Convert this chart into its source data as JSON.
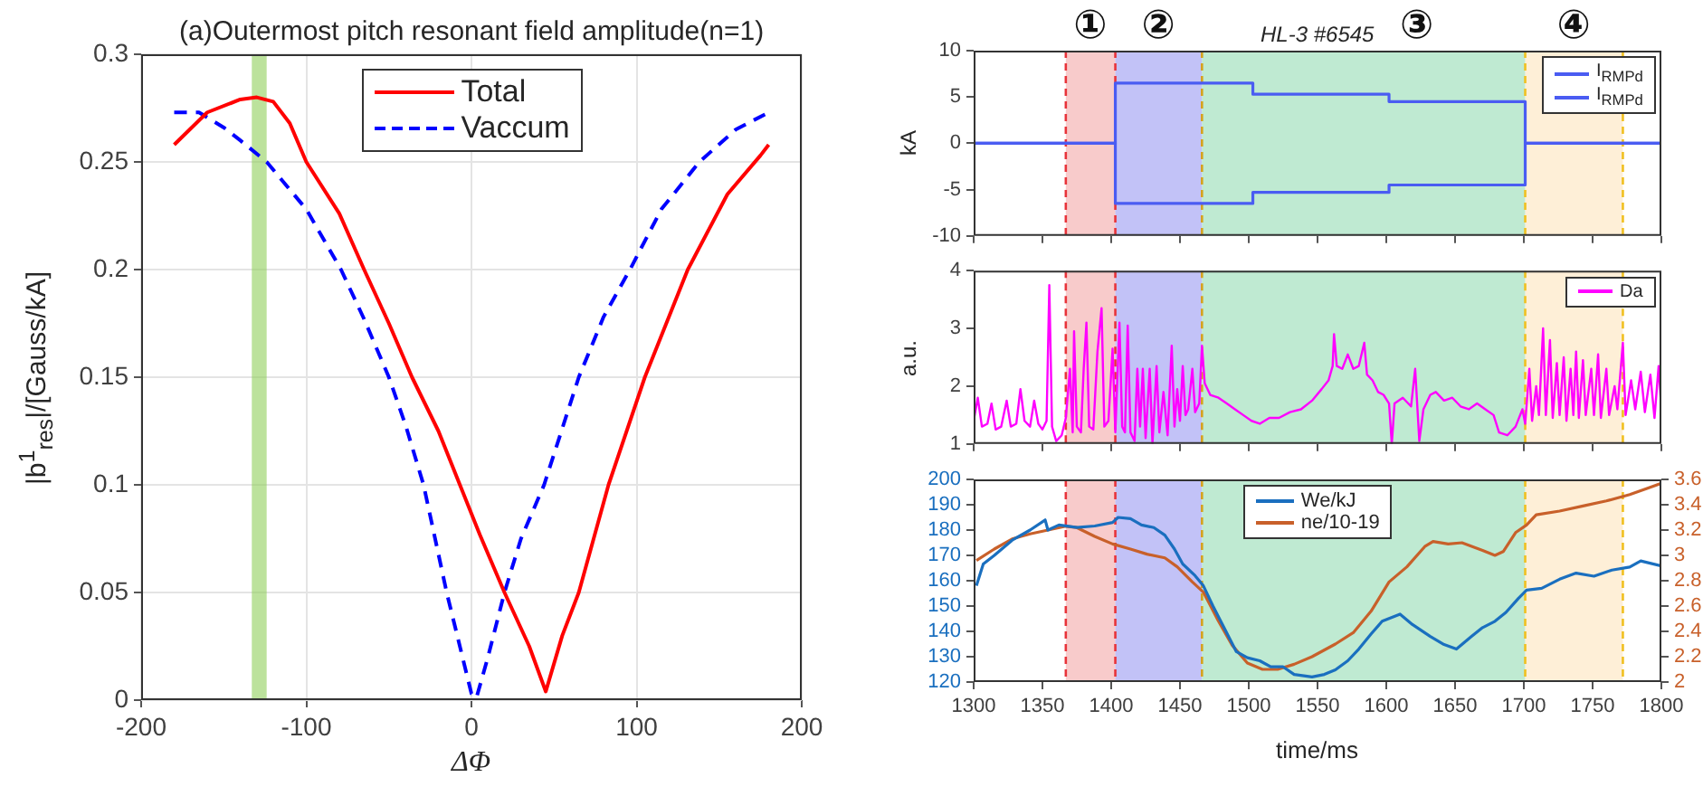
{
  "chart_data": [
    {
      "type": "line",
      "title": "(a)Outermost pitch resonant field amplitude(n=1)",
      "xlabel": "ΔΦ",
      "ylabel": "|b$^{1}$$_{res}$|/[Gauss/kA]",
      "xlim": [
        -200,
        200
      ],
      "xticks": [
        -200,
        -100,
        0,
        100,
        200
      ],
      "ylim": [
        0,
        0.3
      ],
      "yticks": [
        0,
        0.05,
        0.1,
        0.15,
        0.2,
        0.25,
        0.3
      ],
      "grid": true,
      "legend": "top",
      "marker": "none",
      "bands": [
        {
          "axis": "x",
          "from": -133,
          "to": -124,
          "color": "#8fcf5a"
        }
      ],
      "series": [
        {
          "name": "Total",
          "color": "#ff0000",
          "x": [
            -180,
            -160,
            -140,
            -130,
            -120,
            -110,
            -100,
            -80,
            -65,
            -50,
            -36,
            -20,
            -7,
            5,
            20,
            35,
            45,
            55,
            65,
            83,
            105,
            131,
            155,
            175,
            180
          ],
          "values": [
            0.258,
            0.273,
            0.279,
            0.28,
            0.278,
            0.268,
            0.25,
            0.226,
            0.2,
            0.175,
            0.15,
            0.125,
            0.1,
            0.077,
            0.05,
            0.025,
            0.004,
            0.03,
            0.05,
            0.1,
            0.15,
            0.2,
            0.235,
            0.253,
            0.258
          ]
        },
        {
          "name": "Vaccum",
          "color": "#0000ff",
          "line_style": "dashed",
          "x": [
            -180,
            -165,
            -150,
            -140,
            -124,
            -100,
            -79,
            -65,
            -50,
            -40,
            -29,
            -15,
            0,
            3,
            10,
            20,
            30,
            44,
            65,
            80,
            96,
            115,
            138,
            160,
            180
          ],
          "values": [
            0.273,
            0.273,
            0.266,
            0.26,
            0.25,
            0.228,
            0.2,
            0.177,
            0.15,
            0.128,
            0.1,
            0.05,
            0.003,
            0.001,
            0.02,
            0.05,
            0.075,
            0.1,
            0.15,
            0.178,
            0.2,
            0.228,
            0.25,
            0.265,
            0.273
          ]
        }
      ]
    },
    {
      "type": "line",
      "title": "HL-3 #6545",
      "ylabel": "kA",
      "xlim": [
        1300,
        1800
      ],
      "xticks": [
        1300,
        1350,
        1400,
        1450,
        1500,
        1550,
        1600,
        1650,
        1700,
        1750,
        1800
      ],
      "ylim": [
        -10,
        10
      ],
      "yticks": [
        -10,
        -5,
        0,
        5,
        10
      ],
      "tick_labels": "y",
      "legend": "top right",
      "marker": "none",
      "bands": [
        {
          "axis": "x",
          "from": 1367,
          "to": 1403,
          "color": "#f4a8a8",
          "label": "①"
        },
        {
          "axis": "x",
          "from": 1403,
          "to": 1466,
          "color": "#9a9af2",
          "label": "②"
        },
        {
          "axis": "x",
          "from": 1466,
          "to": 1701,
          "color": "#95dcb4",
          "label": "③"
        },
        {
          "axis": "x",
          "from": 1701,
          "to": 1772,
          "color": "#fde4bd",
          "label": "④"
        }
      ],
      "ref_lines": [
        {
          "axis": "x",
          "value": 1367,
          "color": "#e8333a",
          "line_style": "dashed"
        },
        {
          "axis": "x",
          "value": 1403,
          "color": "#e8333a",
          "line_style": "dashed"
        },
        {
          "axis": "x",
          "value": 1466,
          "color": "#d6a21e",
          "line_style": "dashed"
        },
        {
          "axis": "x",
          "value": 1701,
          "color": "#f0c020",
          "line_style": "dashed"
        },
        {
          "axis": "x",
          "value": 1772,
          "color": "#f0c020",
          "line_style": "dashed"
        }
      ],
      "series": [
        {
          "name": "I$_{RMPd}$",
          "color": "#4a5cf2",
          "x": [
            1300,
            1403,
            1403,
            1503,
            1503,
            1602,
            1602,
            1701,
            1701,
            1800
          ],
          "values": [
            0,
            0,
            6.5,
            6.5,
            5.3,
            5.3,
            4.5,
            4.5,
            0,
            0
          ]
        },
        {
          "name": "I$_{RMPd}$",
          "color": "#4a5cf2",
          "x": [
            1300,
            1403,
            1403,
            1503,
            1503,
            1602,
            1602,
            1701,
            1701,
            1800
          ],
          "values": [
            0,
            0,
            -6.5,
            -6.5,
            -5.3,
            -5.3,
            -4.5,
            -4.5,
            0,
            0
          ]
        }
      ]
    },
    {
      "type": "line",
      "ylabel": "a.u.",
      "xlim": [
        1300,
        1800
      ],
      "xticks": [
        1300,
        1350,
        1400,
        1450,
        1500,
        1550,
        1600,
        1650,
        1700,
        1750,
        1800
      ],
      "ylim": [
        1,
        4
      ],
      "yticks": [
        1,
        2,
        3,
        4
      ],
      "tick_labels": "y",
      "legend": "top right",
      "marker": "none",
      "bands": [
        {
          "axis": "x",
          "from": 1367,
          "to": 1403,
          "color": "#f4a8a8"
        },
        {
          "axis": "x",
          "from": 1403,
          "to": 1466,
          "color": "#9a9af2"
        },
        {
          "axis": "x",
          "from": 1466,
          "to": 1701,
          "color": "#95dcb4"
        },
        {
          "axis": "x",
          "from": 1701,
          "to": 1772,
          "color": "#fde4bd"
        }
      ],
      "ref_lines": [
        {
          "axis": "x",
          "value": 1367,
          "color": "#e8333a",
          "line_style": "dashed"
        },
        {
          "axis": "x",
          "value": 1403,
          "color": "#e8333a",
          "line_style": "dashed"
        },
        {
          "axis": "x",
          "value": 1466,
          "color": "#d6a21e",
          "line_style": "dashed"
        },
        {
          "axis": "x",
          "value": 1701,
          "color": "#f0c020",
          "line_style": "dashed"
        },
        {
          "axis": "x",
          "value": 1772,
          "color": "#f0c020",
          "line_style": "dashed"
        }
      ],
      "series": [
        {
          "name": "Da",
          "color": "#ff00ff",
          "x": [
            1300,
            1303,
            1306,
            1310,
            1313,
            1316,
            1320,
            1324,
            1327,
            1331,
            1334,
            1337,
            1341,
            1344,
            1347,
            1350,
            1353,
            1355,
            1357,
            1360,
            1364,
            1367,
            1370,
            1372,
            1373,
            1375,
            1378,
            1380,
            1382,
            1384,
            1387,
            1390,
            1393,
            1395,
            1398,
            1401,
            1403,
            1406,
            1408,
            1410,
            1412,
            1414,
            1417,
            1419,
            1421,
            1423,
            1425,
            1428,
            1430,
            1433,
            1435,
            1438,
            1441,
            1444,
            1446,
            1448,
            1450,
            1452,
            1454,
            1456,
            1459,
            1461,
            1464,
            1466,
            1468,
            1472,
            1478,
            1484,
            1490,
            1496,
            1502,
            1508,
            1515,
            1522,
            1530,
            1538,
            1546,
            1553,
            1558,
            1561,
            1562,
            1564,
            1568,
            1572,
            1576,
            1580,
            1584,
            1586,
            1590,
            1594,
            1598,
            1602,
            1604,
            1606,
            1612,
            1618,
            1621,
            1624,
            1627,
            1632,
            1636,
            1642,
            1648,
            1654,
            1660,
            1666,
            1672,
            1678,
            1682,
            1688,
            1694,
            1699,
            1701,
            1704,
            1706,
            1709,
            1711,
            1714,
            1716,
            1719,
            1721,
            1724,
            1726,
            1729,
            1731,
            1734,
            1736,
            1738,
            1740,
            1743,
            1745,
            1749,
            1751,
            1754,
            1756,
            1760,
            1762,
            1766,
            1768,
            1772,
            1774,
            1778,
            1781,
            1785,
            1788,
            1792,
            1795,
            1798,
            1800
          ],
          "values": [
            1.4,
            1.8,
            1.3,
            1.35,
            1.7,
            1.25,
            1.3,
            1.75,
            1.3,
            1.35,
            1.95,
            1.4,
            1.3,
            1.75,
            1.35,
            1.25,
            1.4,
            3.75,
            1.3,
            1.05,
            1.15,
            1.45,
            2.3,
            1.2,
            2.95,
            1.3,
            1.2,
            2.3,
            3.1,
            1.3,
            1.25,
            2.6,
            3.35,
            1.3,
            1.4,
            2.65,
            1.2,
            3.1,
            1.3,
            1.2,
            3.05,
            1.2,
            1.05,
            2.3,
            1.3,
            2.3,
            1.1,
            2.3,
            1.0,
            2.35,
            1.2,
            1.9,
            1.15,
            2.7,
            1.3,
            1.95,
            1.4,
            2.35,
            1.5,
            1.6,
            2.3,
            1.55,
            1.7,
            2.7,
            2.05,
            1.85,
            1.8,
            1.7,
            1.6,
            1.5,
            1.4,
            1.35,
            1.45,
            1.45,
            1.55,
            1.6,
            1.75,
            1.95,
            2.1,
            2.35,
            2.9,
            2.35,
            2.3,
            2.55,
            2.3,
            2.35,
            2.75,
            2.2,
            2.1,
            1.9,
            1.85,
            1.7,
            1.0,
            1.7,
            1.8,
            1.65,
            2.3,
            1.05,
            1.6,
            1.85,
            1.9,
            1.75,
            1.8,
            1.65,
            1.6,
            1.7,
            1.6,
            1.5,
            1.2,
            1.15,
            1.3,
            1.6,
            1.35,
            2.3,
            1.4,
            2.0,
            1.5,
            3.0,
            1.5,
            2.8,
            1.45,
            2.4,
            1.5,
            2.5,
            1.4,
            2.3,
            1.5,
            2.6,
            1.45,
            2.45,
            1.5,
            2.3,
            1.5,
            2.55,
            1.45,
            2.3,
            1.5,
            2.0,
            1.6,
            2.75,
            1.5,
            2.1,
            1.6,
            2.25,
            1.55,
            2.2,
            1.45,
            2.35,
            1.6
          ]
        }
      ]
    },
    {
      "type": "line",
      "xlabel": "time/ms",
      "xlim": [
        1300,
        1800
      ],
      "xticks": [
        1300,
        1350,
        1400,
        1450,
        1500,
        1550,
        1600,
        1650,
        1700,
        1750,
        1800
      ],
      "ylim": [
        120,
        200
      ],
      "yticks": [
        120,
        130,
        140,
        150,
        160,
        170,
        180,
        190,
        200
      ],
      "y2lim": [
        2,
        3.6
      ],
      "y2ticks": [
        2,
        2.2,
        2.4,
        2.6,
        2.8,
        3,
        3.2,
        3.4,
        3.6
      ],
      "legend": "top",
      "marker": "none",
      "bands": [
        {
          "axis": "x",
          "from": 1367,
          "to": 1403,
          "color": "#f4a8a8"
        },
        {
          "axis": "x",
          "from": 1403,
          "to": 1466,
          "color": "#9a9af2"
        },
        {
          "axis": "x",
          "from": 1466,
          "to": 1701,
          "color": "#95dcb4"
        },
        {
          "axis": "x",
          "from": 1701,
          "to": 1772,
          "color": "#fde4bd"
        }
      ],
      "ref_lines": [
        {
          "axis": "x",
          "value": 1367,
          "color": "#e8333a",
          "line_style": "dashed"
        },
        {
          "axis": "x",
          "value": 1403,
          "color": "#e8333a",
          "line_style": "dashed"
        },
        {
          "axis": "x",
          "value": 1466,
          "color": "#d6a21e",
          "line_style": "dashed"
        },
        {
          "axis": "x",
          "value": 1701,
          "color": "#f0c020",
          "line_style": "dashed"
        },
        {
          "axis": "x",
          "value": 1772,
          "color": "#f0c020",
          "line_style": "dashed"
        }
      ],
      "series": [
        {
          "name": "We/kJ",
          "color": "#1a6fbf",
          "x": [
            1302,
            1307,
            1315,
            1328,
            1341,
            1352,
            1354,
            1362,
            1375,
            1388,
            1401,
            1405,
            1414,
            1422,
            1431,
            1439,
            1446,
            1452,
            1461,
            1467,
            1474,
            1482,
            1491,
            1499,
            1508,
            1516,
            1525,
            1533,
            1546,
            1555,
            1563,
            1572,
            1580,
            1589,
            1597,
            1610,
            1619,
            1632,
            1642,
            1651,
            1662,
            1670,
            1679,
            1687,
            1696,
            1702,
            1713,
            1726,
            1738,
            1751,
            1764,
            1777,
            1785,
            1800
          ],
          "values": [
            158,
            166.6,
            170,
            176,
            180,
            184,
            180,
            182,
            181,
            181.6,
            183,
            185,
            184.5,
            182,
            181,
            178,
            172.5,
            166.6,
            162,
            158,
            150,
            141.5,
            132,
            129.6,
            128.4,
            126,
            126,
            123,
            122,
            123,
            124.8,
            128.4,
            133,
            139,
            144,
            146.8,
            142.7,
            138,
            134.8,
            133,
            138,
            141.5,
            144,
            147.5,
            153,
            156.3,
            157,
            160.6,
            163,
            161.8,
            164.2,
            165.4,
            167.8,
            165.8
          ]
        },
        {
          "name": "ne/10-19",
          "color": "#c8602a",
          "axis": "y2",
          "x": [
            1302,
            1315,
            1328,
            1341,
            1354,
            1367,
            1375,
            1388,
            1401,
            1414,
            1426,
            1439,
            1448,
            1459,
            1467,
            1478,
            1488,
            1499,
            1510,
            1521,
            1533,
            1546,
            1563,
            1576,
            1589,
            1602,
            1615,
            1628,
            1634,
            1645,
            1655,
            1670,
            1679,
            1685,
            1694,
            1702,
            1709,
            1726,
            1743,
            1760,
            1777,
            1790,
            1800
          ],
          "values": [
            2.96,
            3.05,
            3.13,
            3.17,
            3.2,
            3.23,
            3.22,
            3.15,
            3.09,
            3.05,
            3.01,
            2.98,
            2.91,
            2.79,
            2.71,
            2.48,
            2.29,
            2.15,
            2.1,
            2.1,
            2.14,
            2.2,
            2.3,
            2.39,
            2.56,
            2.79,
            2.91,
            3.07,
            3.11,
            3.09,
            3.1,
            3.04,
            3.0,
            3.03,
            3.18,
            3.24,
            3.32,
            3.35,
            3.39,
            3.43,
            3.48,
            3.53,
            3.57
          ]
        }
      ]
    }
  ]
}
